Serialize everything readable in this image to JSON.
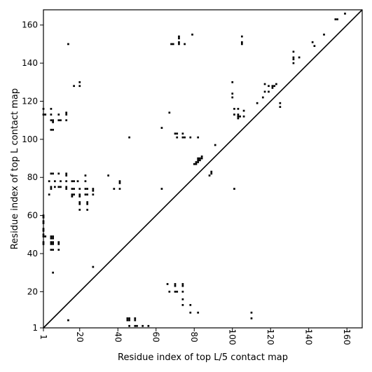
{
  "chart_data": {
    "type": "scatter",
    "title": "",
    "xlabel": "Residue index of top L/5 contact map",
    "ylabel": "Residue index of top L contact map",
    "xlim": [
      1,
      168
    ],
    "ylim": [
      1,
      168
    ],
    "xticks": [
      1,
      20,
      40,
      60,
      80,
      100,
      120,
      140,
      160
    ],
    "yticks": [
      1,
      20,
      40,
      60,
      80,
      100,
      120,
      140,
      160
    ],
    "grid": false,
    "diagonal": true,
    "series": [
      {
        "role": "upper-left",
        "color": "#000000",
        "points": [
          [
            1,
            116
          ],
          [
            1,
            113
          ],
          [
            2,
            113
          ],
          [
            5,
            116
          ],
          [
            5,
            113
          ],
          [
            5,
            110
          ],
          [
            6,
            110
          ],
          [
            6,
            109
          ],
          [
            9,
            113
          ],
          [
            9,
            110
          ],
          [
            10,
            110
          ],
          [
            13,
            114
          ],
          [
            13,
            113
          ],
          [
            13,
            110
          ],
          [
            5,
            105
          ],
          [
            6,
            105
          ],
          [
            5,
            82
          ],
          [
            6,
            82
          ],
          [
            9,
            82
          ],
          [
            13,
            82
          ],
          [
            13,
            81
          ],
          [
            23,
            81
          ],
          [
            4,
            78
          ],
          [
            7,
            78
          ],
          [
            10,
            78
          ],
          [
            13,
            78
          ],
          [
            16,
            78
          ],
          [
            17,
            78
          ],
          [
            19,
            78
          ],
          [
            23,
            78
          ],
          [
            5,
            75
          ],
          [
            5,
            74
          ],
          [
            7,
            75
          ],
          [
            9,
            75
          ],
          [
            10,
            75
          ],
          [
            13,
            75
          ],
          [
            13,
            74
          ],
          [
            16,
            74
          ],
          [
            17,
            74
          ],
          [
            20,
            74
          ],
          [
            23,
            74
          ],
          [
            24,
            74
          ],
          [
            27,
            74
          ],
          [
            27,
            73
          ],
          [
            4,
            71
          ],
          [
            16,
            71
          ],
          [
            16,
            70
          ],
          [
            17,
            71
          ],
          [
            20,
            71
          ],
          [
            20,
            70
          ],
          [
            23,
            71
          ],
          [
            24,
            71
          ],
          [
            27,
            71
          ],
          [
            20,
            67
          ],
          [
            20,
            66
          ],
          [
            24,
            67
          ],
          [
            24,
            66
          ],
          [
            20,
            63
          ],
          [
            24,
            63
          ],
          [
            35,
            81
          ],
          [
            41,
            78
          ],
          [
            41,
            77
          ],
          [
            38,
            74
          ],
          [
            41,
            74
          ],
          [
            1,
            60
          ],
          [
            1,
            59
          ],
          [
            1,
            57
          ],
          [
            1,
            56
          ],
          [
            1,
            53
          ],
          [
            1,
            52
          ],
          [
            1,
            50
          ],
          [
            1,
            49
          ],
          [
            2,
            49
          ],
          [
            1,
            46
          ],
          [
            1,
            45
          ],
          [
            5,
            49
          ],
          [
            6,
            49
          ],
          [
            5,
            48
          ],
          [
            6,
            48
          ],
          [
            9,
            46
          ],
          [
            9,
            45
          ],
          [
            5,
            46
          ],
          [
            5,
            45
          ],
          [
            6,
            46
          ],
          [
            6,
            45
          ],
          [
            5,
            42
          ],
          [
            6,
            42
          ],
          [
            9,
            42
          ],
          [
            6,
            30
          ],
          [
            27,
            33
          ],
          [
            14,
            150
          ],
          [
            17,
            128
          ],
          [
            20,
            130
          ],
          [
            20,
            128
          ],
          [
            46,
            101
          ],
          [
            63,
            106
          ],
          [
            63,
            74
          ],
          [
            67,
            114
          ],
          [
            68,
            150
          ],
          [
            69,
            150
          ],
          [
            72,
            154
          ],
          [
            72,
            153
          ],
          [
            72,
            151
          ],
          [
            72,
            150
          ],
          [
            75,
            150
          ],
          [
            79,
            155
          ],
          [
            70,
            103
          ],
          [
            71,
            103
          ],
          [
            71,
            101
          ],
          [
            74,
            103
          ],
          [
            74,
            101
          ],
          [
            75,
            101
          ],
          [
            78,
            101
          ],
          [
            82,
            101
          ],
          [
            80,
            87
          ],
          [
            81,
            87
          ],
          [
            81,
            88
          ],
          [
            82,
            88
          ],
          [
            82,
            89
          ],
          [
            82,
            90
          ],
          [
            83,
            89
          ],
          [
            83,
            90
          ],
          [
            84,
            90
          ],
          [
            84,
            91
          ],
          [
            89,
            83
          ],
          [
            89,
            82
          ],
          [
            88,
            81
          ],
          [
            91,
            97
          ],
          [
            100,
            130
          ],
          [
            100,
            124
          ],
          [
            100,
            122
          ],
          [
            101,
            116
          ],
          [
            103,
            116
          ],
          [
            101,
            113
          ],
          [
            103,
            113
          ],
          [
            103,
            112
          ],
          [
            103,
            111
          ],
          [
            104,
            112
          ],
          [
            106,
            115
          ],
          [
            106,
            112
          ],
          [
            105,
            154
          ],
          [
            105,
            151
          ],
          [
            105,
            150
          ],
          [
            101,
            74
          ],
          [
            113,
            119
          ],
          [
            116,
            122
          ],
          [
            117,
            125
          ],
          [
            117,
            129
          ],
          [
            119,
            125
          ],
          [
            119,
            128
          ],
          [
            121,
            128
          ],
          [
            121,
            127
          ],
          [
            122,
            128
          ],
          [
            123,
            129
          ],
          [
            125,
            119
          ],
          [
            125,
            117
          ],
          [
            132,
            146
          ],
          [
            132,
            143
          ],
          [
            132,
            142
          ],
          [
            132,
            140
          ],
          [
            135,
            143
          ],
          [
            142,
            151
          ],
          [
            143,
            149
          ],
          [
            148,
            155
          ],
          [
            154,
            163
          ],
          [
            155,
            163
          ],
          [
            159,
            166
          ]
        ]
      },
      {
        "role": "lower-right",
        "color": "#000000",
        "points": [
          [
            14,
            5
          ],
          [
            45,
            5
          ],
          [
            45,
            6
          ],
          [
            46,
            6
          ],
          [
            46,
            5
          ],
          [
            49,
            6
          ],
          [
            49,
            5
          ],
          [
            46,
            2
          ],
          [
            49,
            2
          ],
          [
            50,
            2
          ],
          [
            53,
            2
          ],
          [
            56,
            2
          ],
          [
            66,
            24
          ],
          [
            67,
            20
          ],
          [
            70,
            24
          ],
          [
            70,
            23
          ],
          [
            70,
            20
          ],
          [
            71,
            20
          ],
          [
            74,
            24
          ],
          [
            74,
            23
          ],
          [
            74,
            20
          ],
          [
            74,
            16
          ],
          [
            74,
            13
          ],
          [
            78,
            13
          ],
          [
            78,
            9
          ],
          [
            82,
            9
          ],
          [
            110,
            9
          ],
          [
            110,
            6
          ]
        ]
      }
    ]
  }
}
